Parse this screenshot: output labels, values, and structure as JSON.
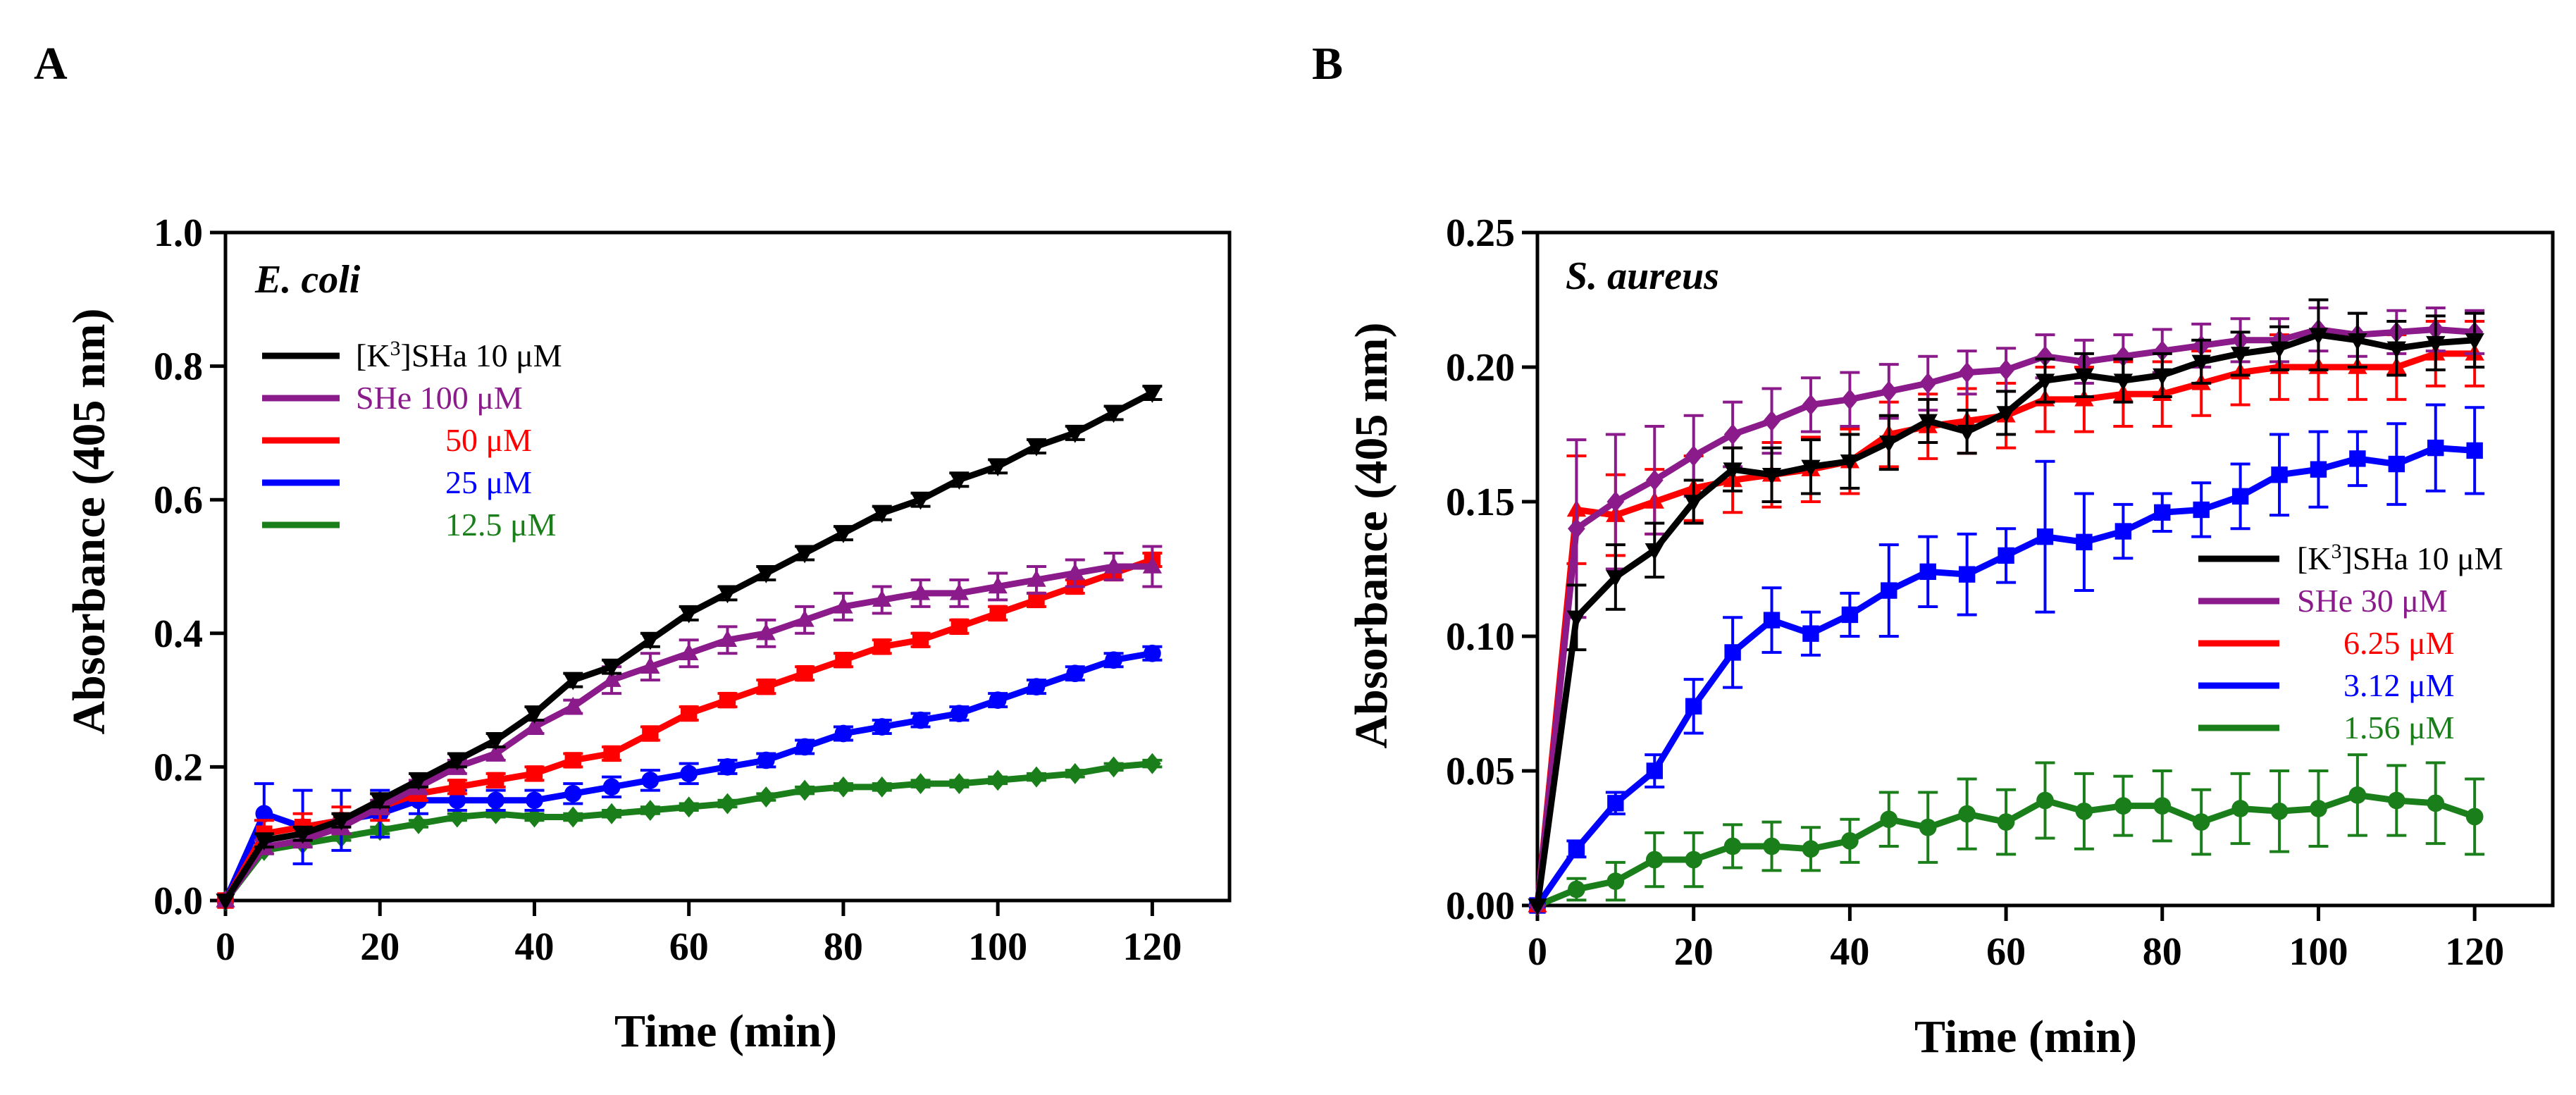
{
  "chart_data": [
    {
      "type": "line",
      "panel": "A",
      "organism": "E. coli",
      "xlabel": "Time (min)",
      "ylabel": "Absorbance (405 nm)",
      "xlim": [
        0,
        130
      ],
      "ylim": [
        0,
        1.0
      ],
      "xticks": [
        "0",
        "20",
        "40",
        "60",
        "80",
        "100",
        "120"
      ],
      "xtick_values": [
        0,
        20,
        40,
        60,
        80,
        100,
        120
      ],
      "yticks": [
        "0.0",
        "0.2",
        "0.4",
        "0.6",
        "0.8",
        "1.0"
      ],
      "ytick_values": [
        0,
        0.2,
        0.4,
        0.6,
        0.8,
        1.0
      ],
      "legend_position": "upper-left",
      "x": [
        0,
        5,
        10,
        15,
        20,
        25,
        30,
        35,
        40,
        45,
        50,
        55,
        60,
        65,
        70,
        75,
        80,
        85,
        90,
        95,
        100,
        105,
        110,
        115,
        120
      ],
      "series": [
        {
          "name": "[K3]SHa 10 μM",
          "legend_main": "[K",
          "legend_sup": "3",
          "legend_rest": "]SHa 10 μM",
          "color": "#000000",
          "marker": "triangle-down",
          "values": [
            0.0,
            0.09,
            0.1,
            0.12,
            0.15,
            0.18,
            0.21,
            0.24,
            0.28,
            0.33,
            0.35,
            0.39,
            0.43,
            0.46,
            0.49,
            0.52,
            0.55,
            0.58,
            0.6,
            0.63,
            0.65,
            0.68,
            0.7,
            0.73,
            0.76
          ],
          "errors": [
            0,
            0.01,
            0.01,
            0.01,
            0.01,
            0.01,
            0.01,
            0.01,
            0.01,
            0.01,
            0.01,
            0.01,
            0.01,
            0.01,
            0.01,
            0.01,
            0.01,
            0.01,
            0.01,
            0.01,
            0.01,
            0.01,
            0.01,
            0.01,
            0.01
          ]
        },
        {
          "name": "SHe 100 μM",
          "legend_main": "SHe 100 μM",
          "color": "#8b1a8b",
          "marker": "triangle-up",
          "values": [
            0.0,
            0.08,
            0.09,
            0.11,
            0.14,
            0.17,
            0.2,
            0.22,
            0.26,
            0.29,
            0.33,
            0.35,
            0.37,
            0.39,
            0.4,
            0.42,
            0.44,
            0.45,
            0.46,
            0.46,
            0.47,
            0.48,
            0.49,
            0.5,
            0.5
          ],
          "errors": [
            0,
            0.01,
            0.01,
            0.01,
            0.01,
            0.01,
            0.01,
            0.01,
            0.01,
            0.01,
            0.02,
            0.02,
            0.02,
            0.02,
            0.02,
            0.02,
            0.02,
            0.02,
            0.02,
            0.02,
            0.02,
            0.02,
            0.02,
            0.02,
            0.03
          ]
        },
        {
          "name": "50 μM",
          "legend_main": "50 μM",
          "color": "#ff0000",
          "marker": "square",
          "values": [
            0.0,
            0.1,
            0.11,
            0.12,
            0.14,
            0.16,
            0.17,
            0.18,
            0.19,
            0.21,
            0.22,
            0.25,
            0.28,
            0.3,
            0.32,
            0.34,
            0.36,
            0.38,
            0.39,
            0.41,
            0.43,
            0.45,
            0.47,
            0.49,
            0.51
          ],
          "errors": [
            0,
            0.02,
            0.02,
            0.02,
            0.02,
            0.01,
            0.01,
            0.01,
            0.01,
            0.01,
            0.01,
            0.01,
            0.01,
            0.01,
            0.01,
            0.01,
            0.01,
            0.01,
            0.01,
            0.01,
            0.01,
            0.01,
            0.01,
            0.01,
            0.01
          ]
        },
        {
          "name": "25 μM",
          "legend_main": "25 μM",
          "color": "#0000ff",
          "marker": "circle",
          "values": [
            0.0,
            0.13,
            0.11,
            0.12,
            0.13,
            0.15,
            0.15,
            0.15,
            0.15,
            0.16,
            0.17,
            0.18,
            0.19,
            0.2,
            0.21,
            0.23,
            0.25,
            0.26,
            0.27,
            0.28,
            0.3,
            0.32,
            0.34,
            0.36,
            0.37
          ],
          "errors": [
            0,
            0.045,
            0.055,
            0.045,
            0.035,
            0.02,
            0.015,
            0.015,
            0.015,
            0.015,
            0.015,
            0.015,
            0.015,
            0.01,
            0.01,
            0.01,
            0.01,
            0.01,
            0.01,
            0.01,
            0.01,
            0.01,
            0.01,
            0.01,
            0.01
          ]
        },
        {
          "name": "12.5 μM",
          "legend_main": "12.5 μM",
          "color": "#1a7f1a",
          "marker": "diamond",
          "values": [
            0.0,
            0.075,
            0.085,
            0.095,
            0.105,
            0.115,
            0.125,
            0.13,
            0.125,
            0.125,
            0.13,
            0.135,
            0.14,
            0.145,
            0.155,
            0.165,
            0.17,
            0.17,
            0.175,
            0.175,
            0.18,
            0.185,
            0.19,
            0.2,
            0.205
          ],
          "errors": [
            0,
            0.005,
            0.005,
            0.005,
            0.005,
            0.005,
            0.005,
            0.005,
            0.005,
            0.005,
            0.005,
            0.005,
            0.005,
            0.005,
            0.005,
            0.005,
            0.005,
            0.005,
            0.005,
            0.005,
            0.005,
            0.005,
            0.005,
            0.005,
            0.005
          ]
        }
      ]
    },
    {
      "type": "line",
      "panel": "B",
      "organism": "S. aureus",
      "xlabel": "Time (min)",
      "ylabel": "Absorbance (405 nm)",
      "xlim": [
        0,
        130
      ],
      "ylim": [
        0,
        0.25
      ],
      "xticks": [
        "0",
        "20",
        "40",
        "60",
        "80",
        "100",
        "120"
      ],
      "xtick_values": [
        0,
        20,
        40,
        60,
        80,
        100,
        120
      ],
      "yticks": [
        "0.00",
        "0.05",
        "0.10",
        "0.15",
        "0.20",
        "0.25"
      ],
      "ytick_values": [
        0,
        0.05,
        0.1,
        0.15,
        0.2,
        0.25
      ],
      "legend_position": "middle-right",
      "x": [
        0,
        5,
        10,
        15,
        20,
        25,
        30,
        35,
        40,
        45,
        50,
        55,
        60,
        65,
        70,
        75,
        80,
        85,
        90,
        95,
        100,
        105,
        110,
        115,
        120
      ],
      "series": [
        {
          "name": "[K3]SHa 10 μM",
          "legend_main": "[K",
          "legend_sup": "3",
          "legend_rest": "]SHa 10 μM",
          "color": "#000000",
          "marker": "triangle-down",
          "values": [
            0.0,
            0.107,
            0.122,
            0.132,
            0.15,
            0.162,
            0.16,
            0.163,
            0.165,
            0.172,
            0.18,
            0.176,
            0.183,
            0.195,
            0.197,
            0.195,
            0.197,
            0.202,
            0.205,
            0.207,
            0.212,
            0.21,
            0.207,
            0.209,
            0.21
          ],
          "errors": [
            0,
            0.012,
            0.012,
            0.01,
            0.008,
            0.008,
            0.01,
            0.01,
            0.01,
            0.01,
            0.008,
            0.008,
            0.008,
            0.008,
            0.008,
            0.008,
            0.008,
            0.008,
            0.008,
            0.008,
            0.013,
            0.01,
            0.01,
            0.01,
            0.01
          ]
        },
        {
          "name": "SHe 30 μM",
          "legend_main": "SHe 30 μM",
          "color": "#8b1a8b",
          "marker": "diamond",
          "values": [
            0.0,
            0.14,
            0.15,
            0.158,
            0.167,
            0.175,
            0.18,
            0.186,
            0.188,
            0.191,
            0.194,
            0.198,
            0.199,
            0.204,
            0.202,
            0.204,
            0.206,
            0.208,
            0.21,
            0.21,
            0.214,
            0.212,
            0.213,
            0.214,
            0.213
          ],
          "errors": [
            0,
            0.033,
            0.025,
            0.02,
            0.015,
            0.012,
            0.012,
            0.01,
            0.01,
            0.01,
            0.01,
            0.008,
            0.008,
            0.008,
            0.008,
            0.008,
            0.008,
            0.008,
            0.008,
            0.008,
            0.008,
            0.008,
            0.008,
            0.008,
            0.008
          ]
        },
        {
          "name": "6.25 μM",
          "legend_main": "6.25 μM",
          "color": "#ff0000",
          "marker": "triangle-up",
          "values": [
            0.0,
            0.147,
            0.145,
            0.15,
            0.155,
            0.158,
            0.16,
            0.162,
            0.165,
            0.175,
            0.178,
            0.18,
            0.182,
            0.188,
            0.188,
            0.19,
            0.19,
            0.194,
            0.198,
            0.2,
            0.2,
            0.2,
            0.2,
            0.205,
            0.205
          ],
          "errors": [
            0,
            0.02,
            0.015,
            0.012,
            0.012,
            0.012,
            0.012,
            0.012,
            0.012,
            0.012,
            0.012,
            0.012,
            0.012,
            0.012,
            0.012,
            0.012,
            0.012,
            0.012,
            0.012,
            0.012,
            0.012,
            0.012,
            0.012,
            0.012,
            0.012
          ]
        },
        {
          "name": "3.12 μM",
          "legend_main": "3.12 μM",
          "color": "#0000ff",
          "marker": "square",
          "values": [
            0.0,
            0.021,
            0.038,
            0.05,
            0.074,
            0.094,
            0.106,
            0.101,
            0.108,
            0.117,
            0.124,
            0.123,
            0.13,
            0.137,
            0.135,
            0.139,
            0.146,
            0.147,
            0.152,
            0.16,
            0.162,
            0.166,
            0.164,
            0.17,
            0.169
          ],
          "errors": [
            0,
            0.003,
            0.004,
            0.006,
            0.01,
            0.013,
            0.012,
            0.008,
            0.008,
            0.017,
            0.013,
            0.015,
            0.01,
            0.028,
            0.018,
            0.01,
            0.007,
            0.01,
            0.012,
            0.015,
            0.014,
            0.01,
            0.015,
            0.016,
            0.016
          ]
        },
        {
          "name": "1.56 μM",
          "legend_main": "1.56 μM",
          "color": "#1a7f1a",
          "marker": "circle",
          "values": [
            0.0,
            0.006,
            0.009,
            0.017,
            0.017,
            0.022,
            0.022,
            0.021,
            0.024,
            0.032,
            0.029,
            0.034,
            0.031,
            0.039,
            0.035,
            0.037,
            0.037,
            0.031,
            0.036,
            0.035,
            0.036,
            0.041,
            0.039,
            0.038,
            0.033
          ],
          "errors": [
            0,
            0.004,
            0.007,
            0.01,
            0.01,
            0.008,
            0.009,
            0.008,
            0.008,
            0.01,
            0.013,
            0.013,
            0.012,
            0.014,
            0.014,
            0.011,
            0.013,
            0.012,
            0.013,
            0.015,
            0.014,
            0.015,
            0.013,
            0.015,
            0.014
          ]
        }
      ]
    }
  ]
}
